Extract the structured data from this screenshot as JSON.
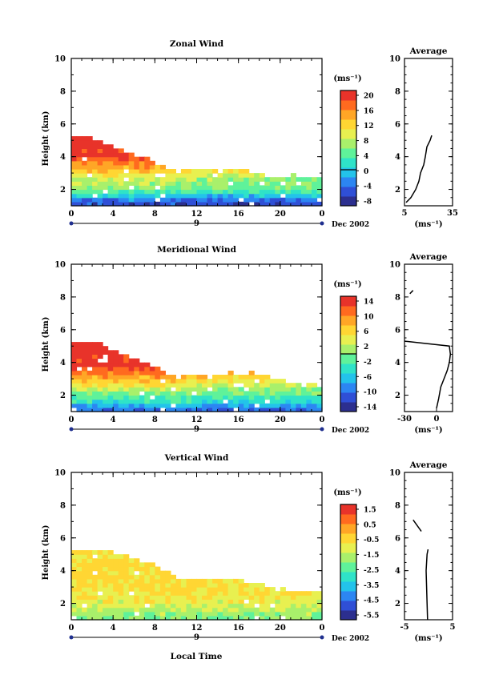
{
  "figure": {
    "date_label": "Dec 2002",
    "xlabel": "Local Time",
    "ylabel": "Height (km)",
    "unit_label": "(ms⁻¹)",
    "avg_title": "Average"
  },
  "chart_data": [
    {
      "type": "heatmap",
      "title": "Zonal Wind",
      "xlabel": "",
      "ylabel": "Height (km)",
      "x_ticks": [
        "0",
        "4",
        "8",
        "12",
        "16",
        "20",
        "0"
      ],
      "day_label": "9",
      "y_ticks": [
        "2",
        "4",
        "6",
        "8",
        "10"
      ],
      "xlim": [
        0,
        24
      ],
      "ylim": [
        1,
        10
      ],
      "colorbar": {
        "unit": "(ms⁻¹)",
        "ticks": [
          "20",
          "16",
          "12",
          "8",
          "4",
          "0",
          "-4",
          "-8"
        ],
        "range": [
          -10,
          22
        ],
        "contour_at": 0
      },
      "top_height_km": [
        5.1,
        5.1,
        5.0,
        4.6,
        4.5,
        4.2,
        4.0,
        3.8,
        3.5,
        3.1,
        3.0,
        3.1,
        3.1,
        3.1,
        3.0,
        3.1,
        3.2,
        3.1,
        2.9,
        2.8,
        2.7,
        2.8,
        2.6,
        2.7,
        2.8
      ],
      "profile_by_height": [
        {
          "height_km": 1.2,
          "value": -6
        },
        {
          "height_km": 1.5,
          "value": -2
        },
        {
          "height_km": 2.0,
          "value": 6
        },
        {
          "height_km": 2.6,
          "value": 9
        },
        {
          "height_km": 3.2,
          "value": 14
        },
        {
          "height_km": 3.8,
          "value": 19
        },
        {
          "height_km": 4.5,
          "value": 21
        },
        {
          "height_km": 5.1,
          "value": 22
        }
      ],
      "average": {
        "title": "Average",
        "xlim": [
          5,
          35
        ],
        "x_ticks": [
          "5",
          "35"
        ],
        "y_ticks": [
          "2",
          "4",
          "6",
          "8",
          "10"
        ],
        "unit": "(ms⁻¹)",
        "profile": [
          {
            "height_km": 1.2,
            "value": 6
          },
          {
            "height_km": 1.5,
            "value": 9
          },
          {
            "height_km": 2.0,
            "value": 12
          },
          {
            "height_km": 2.5,
            "value": 14
          },
          {
            "height_km": 3.0,
            "value": 15
          },
          {
            "height_km": 3.5,
            "value": 17
          },
          {
            "height_km": 4.0,
            "value": 18
          },
          {
            "height_km": 4.6,
            "value": 19
          },
          {
            "height_km": 5.0,
            "value": 21
          },
          {
            "height_km": 5.3,
            "value": 22
          }
        ]
      }
    },
    {
      "type": "heatmap",
      "title": "Meridional Wind",
      "xlabel": "",
      "ylabel": "Height (km)",
      "x_ticks": [
        "0",
        "4",
        "8",
        "12",
        "16",
        "20",
        "0"
      ],
      "day_label": "9",
      "y_ticks": [
        "2",
        "4",
        "6",
        "8",
        "10"
      ],
      "xlim": [
        0,
        24
      ],
      "ylim": [
        1,
        10
      ],
      "colorbar": {
        "unit": "(ms⁻¹)",
        "ticks": [
          "14",
          "10",
          "6",
          "2",
          "-2",
          "-6",
          "-10",
          "-14"
        ],
        "range": [
          -16,
          16
        ],
        "contour_at": 0
      },
      "top_height_km": [
        5.1,
        5.2,
        5.2,
        4.9,
        4.6,
        4.4,
        4.1,
        3.9,
        3.6,
        3.2,
        3.0,
        3.1,
        3.1,
        3.0,
        3.2,
        3.3,
        3.2,
        3.3,
        3.1,
        3.0,
        2.8,
        2.7,
        2.7,
        2.6,
        2.7
      ],
      "profile_by_height": [
        {
          "height_km": 1.2,
          "value": -10
        },
        {
          "height_km": 1.5,
          "value": -5
        },
        {
          "height_km": 2.0,
          "value": -1
        },
        {
          "height_km": 2.6,
          "value": 5
        },
        {
          "height_km": 3.2,
          "value": 10
        },
        {
          "height_km": 3.8,
          "value": 14
        },
        {
          "height_km": 4.5,
          "value": 15
        },
        {
          "height_km": 5.1,
          "value": 16
        }
      ],
      "average": {
        "title": "Average",
        "xlim": [
          -30,
          15
        ],
        "x_ticks": [
          "-30",
          "0"
        ],
        "y_ticks": [
          "2",
          "4",
          "6",
          "8",
          "10"
        ],
        "unit": "(ms⁻¹)",
        "profile": [
          {
            "height_km": 1.2,
            "value": 0
          },
          {
            "height_km": 1.8,
            "value": 2
          },
          {
            "height_km": 2.5,
            "value": 4
          },
          {
            "height_km": 3.0,
            "value": 7
          },
          {
            "height_km": 3.5,
            "value": 10
          },
          {
            "height_km": 4.0,
            "value": 12
          },
          {
            "height_km": 4.5,
            "value": 13
          },
          {
            "height_km": 5.0,
            "value": 12
          },
          {
            "height_km": 5.3,
            "value": -30
          }
        ],
        "profile_upper": [
          {
            "height_km": 8.2,
            "value": -25
          },
          {
            "height_km": 8.4,
            "value": -22
          }
        ]
      }
    },
    {
      "type": "heatmap",
      "title": "Vertical Wind",
      "xlabel": "Local Time",
      "ylabel": "Height (km)",
      "x_ticks": [
        "0",
        "4",
        "8",
        "12",
        "16",
        "20",
        "0"
      ],
      "day_label": "9",
      "y_ticks": [
        "2",
        "4",
        "6",
        "8",
        "10"
      ],
      "xlim": [
        0,
        24
      ],
      "ylim": [
        1,
        10
      ],
      "colorbar": {
        "unit": "(ms⁻¹)",
        "ticks": [
          "1.5",
          "0.5",
          "-0.5",
          "-1.5",
          "-2.5",
          "-3.5",
          "-4.5",
          "-5.5"
        ],
        "range": [
          -6,
          2
        ],
        "contour_at": null
      },
      "top_height_km": [
        5.2,
        5.2,
        5.1,
        5.1,
        5.0,
        4.8,
        4.6,
        4.4,
        4.2,
        3.8,
        3.4,
        3.3,
        3.4,
        3.4,
        3.3,
        3.3,
        3.3,
        3.2,
        3.1,
        2.9,
        2.8,
        2.7,
        2.6,
        2.6,
        2.7
      ],
      "profile_by_height": [
        {
          "height_km": 1.2,
          "value": -2
        },
        {
          "height_km": 2.0,
          "value": -1
        },
        {
          "height_km": 3.0,
          "value": -0.5
        },
        {
          "height_km": 4.0,
          "value": -0.5
        },
        {
          "height_km": 5.1,
          "value": -0.5
        }
      ],
      "average": {
        "title": "Average",
        "xlim": [
          -5,
          5
        ],
        "x_ticks": [
          "-5",
          "5"
        ],
        "y_ticks": [
          "2",
          "4",
          "6",
          "8",
          "10"
        ],
        "unit": "(ms⁻¹)",
        "profile": [
          {
            "height_km": 1.0,
            "value": -0.2
          },
          {
            "height_km": 2.0,
            "value": -0.3
          },
          {
            "height_km": 3.0,
            "value": -0.4
          },
          {
            "height_km": 4.0,
            "value": -0.5
          },
          {
            "height_km": 5.0,
            "value": -0.3
          },
          {
            "height_km": 5.3,
            "value": -0.1
          }
        ],
        "profile_upper": [
          {
            "height_km": 6.4,
            "value": -1.5
          },
          {
            "height_km": 7.1,
            "value": -3.2
          }
        ]
      }
    }
  ]
}
